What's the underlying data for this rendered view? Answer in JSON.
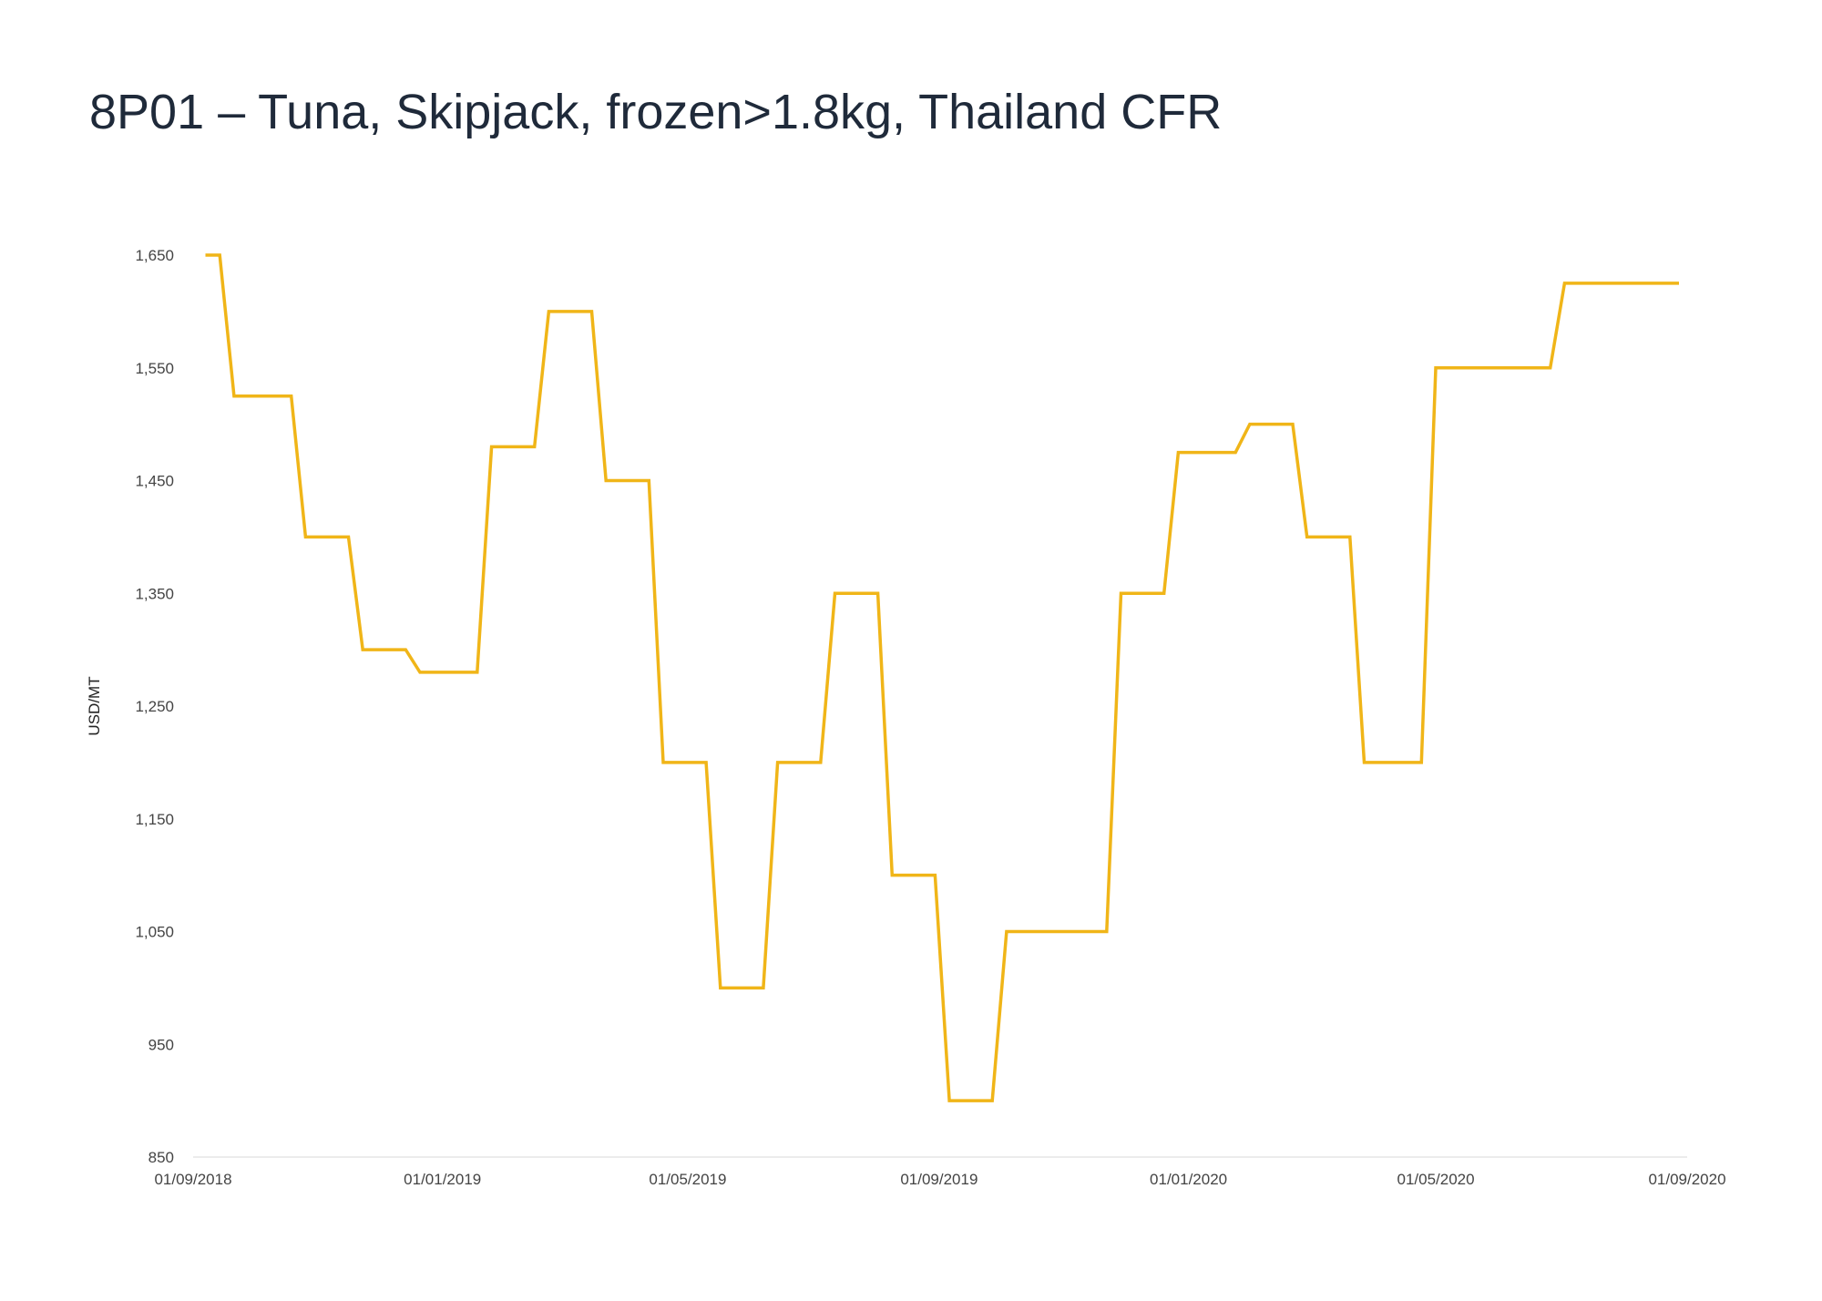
{
  "title": "8P01 – Tuna, Skipjack, frozen>1.8kg, Thailand CFR",
  "chart_data": {
    "type": "line",
    "title": "8P01 – Tuna, Skipjack, frozen>1.8kg, Thailand CFR",
    "xlabel": "",
    "ylabel": "USD/MT",
    "ylim": [
      850,
      1650
    ],
    "xlim": [
      "2018-09-01",
      "2020-09-01"
    ],
    "yticks": [
      850,
      950,
      1050,
      1150,
      1250,
      1350,
      1450,
      1550,
      1650
    ],
    "ytick_labels": [
      "850",
      "950",
      "1,050",
      "1,150",
      "1,250",
      "1,350",
      "1,450",
      "1,550",
      "1,650"
    ],
    "xticks": [
      "2018-09-01",
      "2019-01-01",
      "2019-05-01",
      "2019-09-01",
      "2020-01-01",
      "2020-05-01",
      "2020-09-01"
    ],
    "xtick_labels": [
      "01/09/2018",
      "01/01/2019",
      "01/05/2019",
      "01/09/2019",
      "01/01/2020",
      "01/05/2020",
      "01/09/2020"
    ],
    "grid": false,
    "legend": "none",
    "line_color": "#F0B518",
    "series": [
      {
        "x": [
          "2018-09-07",
          "2018-09-14",
          "2018-09-21",
          "2018-10-19",
          "2018-10-26",
          "2018-11-16",
          "2018-11-23",
          "2018-12-14",
          "2018-12-21",
          "2019-01-18",
          "2019-01-25",
          "2019-02-15",
          "2019-02-22",
          "2019-03-15",
          "2019-03-22",
          "2019-04-12",
          "2019-04-19",
          "2019-05-10",
          "2019-05-17",
          "2019-06-07",
          "2019-06-14",
          "2019-07-05",
          "2019-07-12",
          "2019-08-02",
          "2019-08-09",
          "2019-08-30",
          "2019-09-06",
          "2019-09-27",
          "2019-10-04",
          "2019-11-22",
          "2019-11-29",
          "2019-12-20",
          "2019-12-27",
          "2020-01-24",
          "2020-01-31",
          "2020-02-21",
          "2020-02-28",
          "2020-03-20",
          "2020-03-27",
          "2020-04-24",
          "2020-05-01",
          "2020-06-26",
          "2020-07-03",
          "2020-07-31",
          "2020-08-07",
          "2020-08-28"
        ],
        "y": [
          1650,
          1650,
          1525,
          1525,
          1400,
          1400,
          1300,
          1300,
          1280,
          1280,
          1480,
          1480,
          1600,
          1600,
          1450,
          1450,
          1200,
          1200,
          1000,
          1000,
          1200,
          1200,
          1350,
          1350,
          1100,
          1100,
          900,
          900,
          1050,
          1050,
          1350,
          1350,
          1475,
          1475,
          1500,
          1500,
          1400,
          1400,
          1200,
          1200,
          1550,
          1550,
          1625,
          1625,
          1625,
          1625
        ]
      }
    ]
  }
}
